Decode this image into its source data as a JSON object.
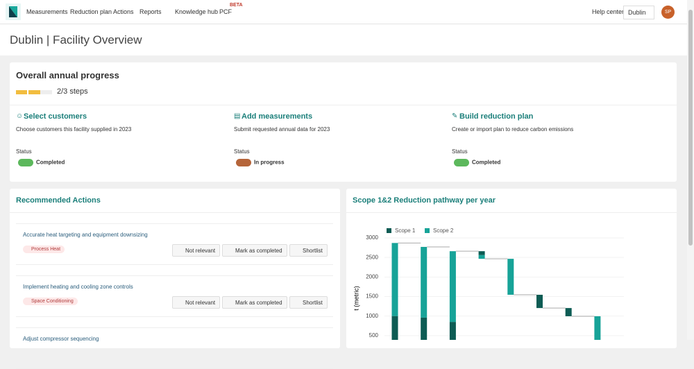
{
  "nav": {
    "items": [
      "Measurements",
      "Reduction plan",
      "Actions",
      "Reports",
      "Knowledge hub",
      "PCF"
    ],
    "badge": "BETA",
    "help": "Help center",
    "location": "Dublin",
    "avatar": "SP"
  },
  "page_title": "Dublin | Facility Overview",
  "progress": {
    "title": "Overall annual progress",
    "steps_label": "2/3 steps",
    "status_label": "Status",
    "steps": [
      {
        "title": "Select customers",
        "description": "Choose customers this facility supplied in 2023",
        "status": "Completed"
      },
      {
        "title": "Add measurements",
        "description": "Submit requested annual data for 2023",
        "status": "In progress"
      },
      {
        "title": "Build reduction plan",
        "description": "Create or import plan to reduce carbon emissions",
        "status": "Completed"
      }
    ]
  },
  "actions": {
    "title": "Recommended Actions",
    "buttons": [
      "Not relevant",
      "Mark as completed",
      "Shortlist"
    ],
    "items": [
      {
        "title": "Accurate heat targeting and equipment downsizing",
        "tag": "Process Heat"
      },
      {
        "title": "Implement heating and cooling zone controls",
        "tag": "Space Conditioning"
      },
      {
        "title": "Adjust compressor sequencing",
        "tag": null
      }
    ]
  },
  "chart_data": {
    "type": "waterfall",
    "title": "Scope 1&2 Reduction pathway per year",
    "y_label": "t (metric)",
    "categories": [
      null,
      null,
      null,
      null,
      null,
      null,
      null,
      null
    ],
    "measure": [
      "total",
      "total",
      "total",
      "relative",
      "relative",
      "relative",
      "relative",
      "total"
    ],
    "series": [
      {
        "name": "Scope 1",
        "color": "#0d5c54",
        "values": [
          1000,
          960,
          850,
          -100,
          null,
          -340,
          -210,
          null
        ]
      },
      {
        "name": "Scope 2",
        "color": "#17a398",
        "values": [
          1870,
          1810,
          1810,
          -95,
          -920,
          null,
          null,
          995
        ]
      }
    ],
    "ylim": [
      0,
      3000
    ],
    "yticks": [
      500,
      1000,
      1500,
      2000,
      2500,
      3000
    ],
    "grid": true,
    "legend": "top-left"
  }
}
